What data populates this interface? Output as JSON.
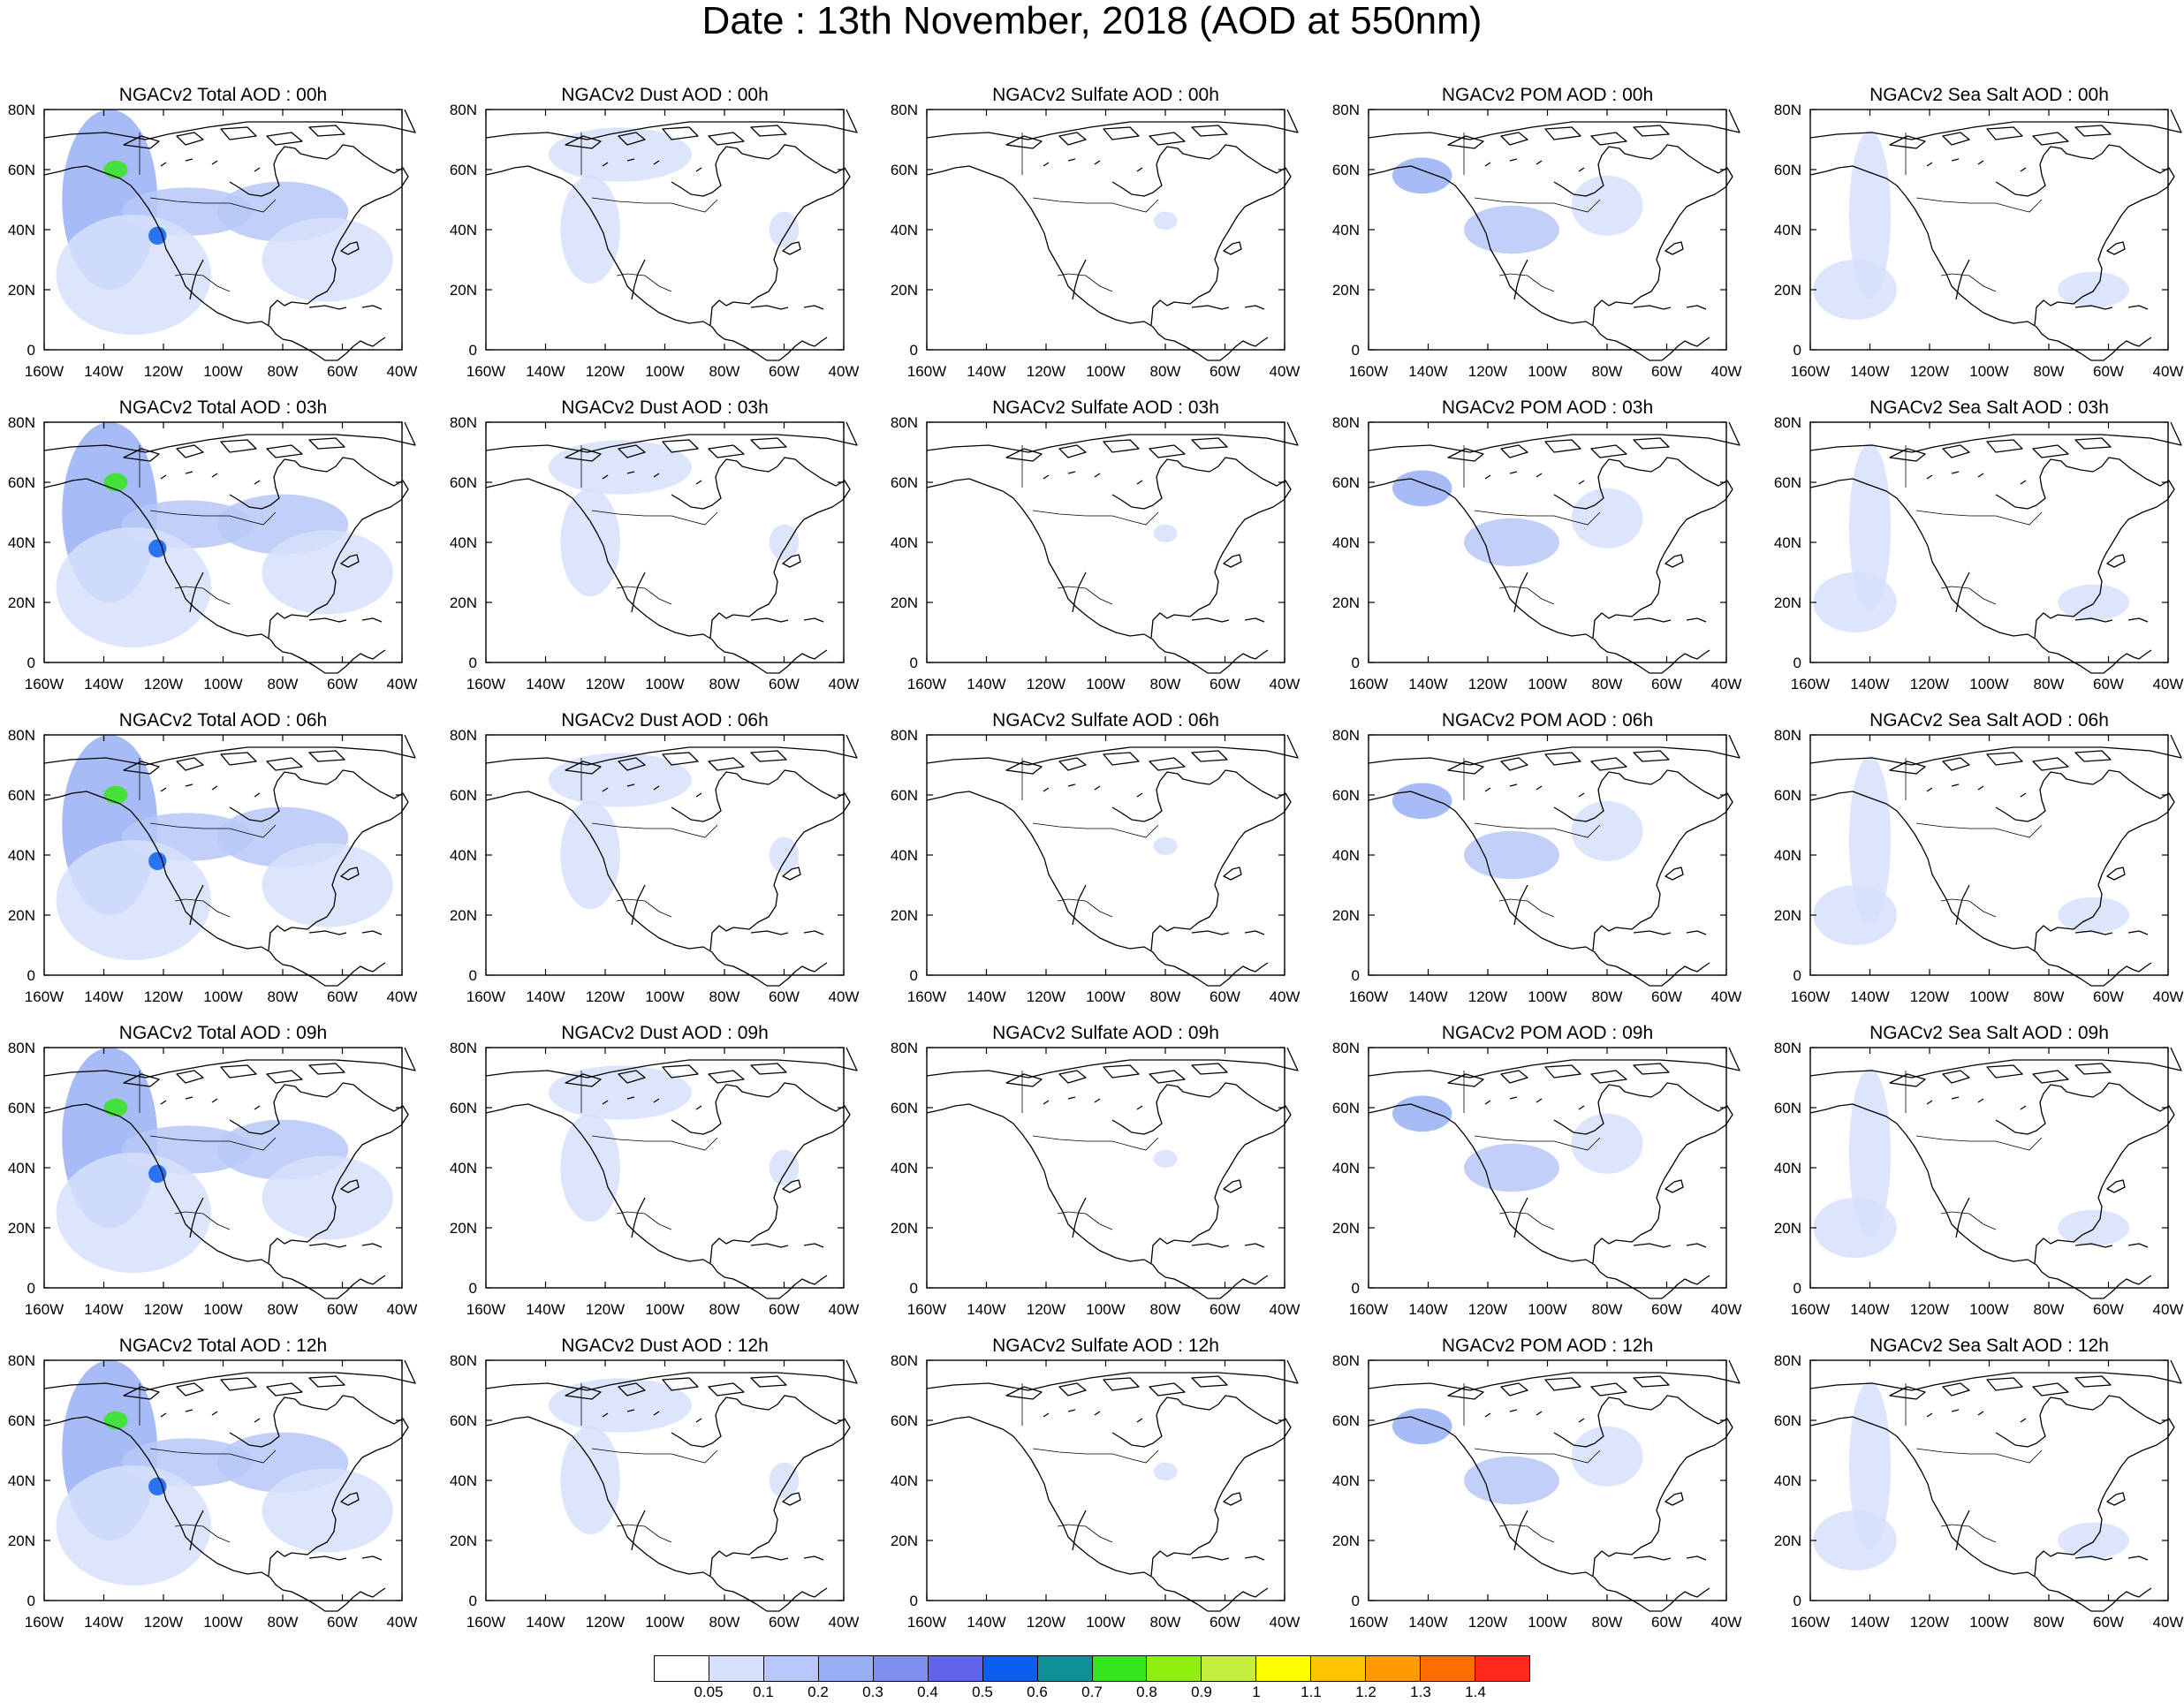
{
  "title": "Date : 13th November, 2018 (AOD at 550nm)",
  "hours": [
    "00h",
    "03h",
    "06h",
    "09h",
    "12h"
  ],
  "species": [
    "Total",
    "Dust",
    "Sulfate",
    "POM",
    "Sea Salt"
  ],
  "panel_titles": [
    [
      "NGACv2 Total AOD : 00h",
      "NGACv2 Dust AOD : 00h",
      "NGACv2 Sulfate AOD : 00h",
      "NGACv2 POM AOD : 00h",
      "NGACv2 Sea Salt AOD : 00h"
    ],
    [
      "NGACv2 Total AOD : 03h",
      "NGACv2 Dust AOD : 03h",
      "NGACv2 Sulfate AOD : 03h",
      "NGACv2 POM AOD : 03h",
      "NGACv2 Sea Salt AOD : 03h"
    ],
    [
      "NGACv2 Total AOD : 06h",
      "NGACv2 Dust AOD : 06h",
      "NGACv2 Sulfate AOD : 06h",
      "NGACv2 POM AOD : 06h",
      "NGACv2 Sea Salt AOD : 06h"
    ],
    [
      "NGACv2 Total AOD : 09h",
      "NGACv2 Dust AOD : 09h",
      "NGACv2 Sulfate AOD : 09h",
      "NGACv2 POM AOD : 09h",
      "NGACv2 Sea Salt  AOD : 09h"
    ],
    [
      "NGACv2 Total AOD  : 12h",
      "NGACv2 Dust AOD : 12h",
      "NGACv2 Sulfate AOD : 12h",
      "NGACv2 POM  AOD : 12h",
      "NGACv2 Sea Salt  AOD : 12h"
    ]
  ],
  "map": {
    "lon_range": [
      -160,
      -40
    ],
    "lat_range": [
      0,
      80
    ],
    "lon_ticks": [
      "160W",
      "140W",
      "120W",
      "100W",
      "80W",
      "60W",
      "40W"
    ],
    "lat_ticks": [
      "0",
      "20N",
      "40N",
      "60N",
      "80N"
    ]
  },
  "colorbar": {
    "colors": [
      "#ffffff",
      "#d6e1fb",
      "#b7c8f8",
      "#98aff5",
      "#7f8ff0",
      "#5f64ea",
      "#0a5ff0",
      "#0c9196",
      "#33e61a",
      "#8ff010",
      "#c4f03c",
      "#ffff00",
      "#ffc400",
      "#ff9a00",
      "#ff6f00",
      "#ff2a1a"
    ],
    "labels": [
      "0.05",
      "0.1",
      "0.2",
      "0.3",
      "0.4",
      "0.5",
      "0.6",
      "0.7",
      "0.8",
      "0.9",
      "1",
      "1.1",
      "1.2",
      "1.3",
      "1.4"
    ]
  },
  "plumes": {
    "Total": [
      {
        "lon": -138,
        "lat": 50,
        "rx": 16,
        "ry": 30,
        "level": 3
      },
      {
        "lon": -112,
        "lat": 46,
        "rx": 22,
        "ry": 8,
        "level": 2
      },
      {
        "lon": -80,
        "lat": 46,
        "rx": 22,
        "ry": 10,
        "level": 2
      },
      {
        "lon": -130,
        "lat": 25,
        "rx": 26,
        "ry": 20,
        "level": 1
      },
      {
        "lon": -65,
        "lat": 30,
        "rx": 22,
        "ry": 14,
        "level": 1
      },
      {
        "lon": -136,
        "lat": 60,
        "rx": 4,
        "ry": 3,
        "level": 8
      },
      {
        "lon": -122,
        "lat": 38,
        "rx": 3,
        "ry": 3,
        "level": 6
      }
    ],
    "Dust": [
      {
        "lon": -115,
        "lat": 65,
        "rx": 24,
        "ry": 9,
        "level": 1
      },
      {
        "lon": -125,
        "lat": 40,
        "rx": 10,
        "ry": 18,
        "level": 1
      },
      {
        "lon": -60,
        "lat": 40,
        "rx": 5,
        "ry": 6,
        "level": 1
      }
    ],
    "Sulfate": [
      {
        "lon": -80,
        "lat": 43,
        "rx": 4,
        "ry": 3,
        "level": 1
      }
    ],
    "POM": [
      {
        "lon": -142,
        "lat": 58,
        "rx": 10,
        "ry": 6,
        "level": 3
      },
      {
        "lon": -112,
        "lat": 40,
        "rx": 16,
        "ry": 8,
        "level": 2
      },
      {
        "lon": -80,
        "lat": 48,
        "rx": 12,
        "ry": 10,
        "level": 1
      }
    ],
    "Sea Salt": [
      {
        "lon": -140,
        "lat": 45,
        "rx": 7,
        "ry": 28,
        "level": 1
      },
      {
        "lon": -145,
        "lat": 20,
        "rx": 14,
        "ry": 10,
        "level": 1
      },
      {
        "lon": -65,
        "lat": 20,
        "rx": 12,
        "ry": 6,
        "level": 1
      }
    ]
  }
}
